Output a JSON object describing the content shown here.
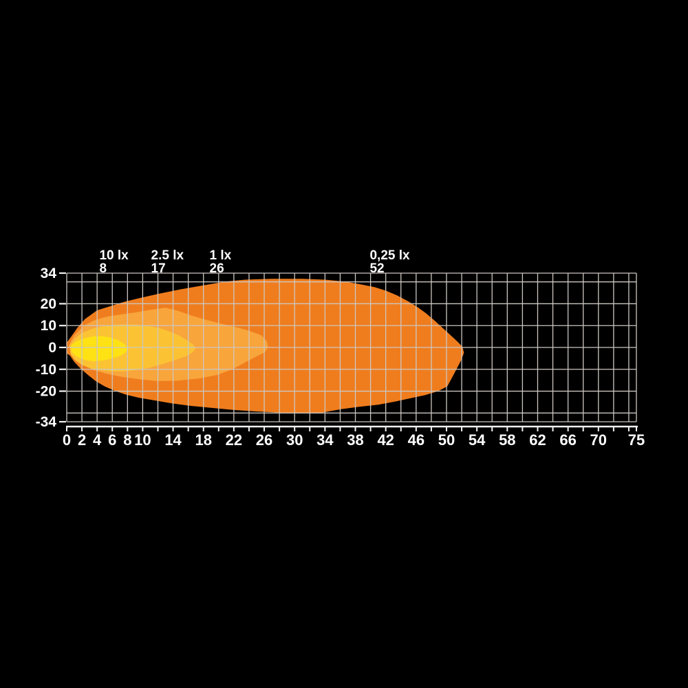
{
  "title": "beam-pattern-isolux-diagram",
  "colors": {
    "background": "#000000",
    "grid": "#CCC7C2",
    "axis": "#F2F2F2",
    "text": "#FFFFFF"
  },
  "chart_data": {
    "type": "area",
    "subtype": "isolux-contour-map",
    "x_axis": {
      "range": [
        0,
        75
      ],
      "grid_step": 2,
      "tick_labels": [
        "0",
        "2",
        "4",
        "6",
        "8",
        "10",
        "14",
        "18",
        "22",
        "26",
        "30",
        "34",
        "38",
        "42",
        "46",
        "50",
        "54",
        "58",
        "62",
        "66",
        "70",
        "75"
      ],
      "tick_values": [
        0,
        2,
        4,
        6,
        8,
        10,
        14,
        18,
        22,
        26,
        30,
        34,
        38,
        42,
        46,
        50,
        54,
        58,
        62,
        66,
        70,
        75
      ]
    },
    "y_axis": {
      "range": [
        -34,
        34
      ],
      "grid_values": [
        34,
        30,
        20,
        10,
        0,
        -10,
        -20,
        -30,
        -34
      ],
      "tick_labels": [
        "34",
        "20",
        "10",
        "0",
        "-10",
        "-20",
        "-34"
      ],
      "tick_values": [
        34,
        20,
        10,
        0,
        -10,
        -20,
        -34
      ]
    },
    "contours": [
      {
        "lux_label": "0,25 lx",
        "distance_label": "52",
        "distance_m": 52,
        "label_anchor_x": 39.9,
        "color": "#EF7D1E",
        "points": [
          [
            0,
            2.2
          ],
          [
            0.6,
            5
          ],
          [
            1.4,
            9
          ],
          [
            2.4,
            13
          ],
          [
            4,
            17
          ],
          [
            5.5,
            18.6
          ],
          [
            7.5,
            20.8
          ],
          [
            9.5,
            22.5
          ],
          [
            12,
            24.5
          ],
          [
            15,
            26.6
          ],
          [
            18,
            28.4
          ],
          [
            21,
            30.2
          ],
          [
            23.5,
            31
          ],
          [
            27,
            31.4
          ],
          [
            31,
            31.4
          ],
          [
            34,
            31
          ],
          [
            36.5,
            30.2
          ],
          [
            38.5,
            29
          ],
          [
            40.5,
            27.6
          ],
          [
            42,
            26
          ],
          [
            43.5,
            23.8
          ],
          [
            45,
            21
          ],
          [
            46.2,
            18.4
          ],
          [
            47.3,
            15.6
          ],
          [
            48.4,
            12.4
          ],
          [
            49.4,
            9.2
          ],
          [
            50.4,
            6
          ],
          [
            51.4,
            2.8
          ],
          [
            52.1,
            0.3
          ],
          [
            52.3,
            -2.5
          ],
          [
            51.9,
            -6
          ],
          [
            51.3,
            -10
          ],
          [
            50.7,
            -14
          ],
          [
            50.1,
            -17.8
          ],
          [
            48.9,
            -20
          ],
          [
            47.2,
            -21.8
          ],
          [
            45.3,
            -23.2
          ],
          [
            43.2,
            -24.8
          ],
          [
            41,
            -26.2
          ],
          [
            38.4,
            -27.2
          ],
          [
            36.2,
            -28.2
          ],
          [
            34.6,
            -29.2
          ],
          [
            33.2,
            -30.2
          ],
          [
            31,
            -30
          ],
          [
            28,
            -29.8
          ],
          [
            25,
            -29.3
          ],
          [
            22,
            -28.6
          ],
          [
            19,
            -27.6
          ],
          [
            16.2,
            -26.7
          ],
          [
            13.8,
            -25.6
          ],
          [
            11.5,
            -24.2
          ],
          [
            9.5,
            -23
          ],
          [
            7.8,
            -21.6
          ],
          [
            6.3,
            -19.8
          ],
          [
            5,
            -17.8
          ],
          [
            3.8,
            -15.4
          ],
          [
            2.8,
            -12.6
          ],
          [
            1.8,
            -9.6
          ],
          [
            1,
            -6.6
          ],
          [
            0.4,
            -3.6
          ],
          [
            0,
            -2.8
          ]
        ]
      },
      {
        "lux_label": "1 lx",
        "distance_label": "26",
        "distance_m": 26,
        "label_anchor_x": 18.8,
        "color": "#F8A53C",
        "points": [
          [
            0.3,
            1
          ],
          [
            1,
            5.5
          ],
          [
            2.2,
            9.8
          ],
          [
            3.6,
            12.4
          ],
          [
            5.2,
            14
          ],
          [
            7,
            15
          ],
          [
            9,
            16
          ],
          [
            11,
            17.2
          ],
          [
            13,
            18.2
          ],
          [
            14.6,
            16.8
          ],
          [
            16.4,
            14.6
          ],
          [
            18.4,
            12.6
          ],
          [
            20.4,
            10.8
          ],
          [
            22.4,
            9.2
          ],
          [
            24.2,
            7.4
          ],
          [
            25.6,
            5.6
          ],
          [
            26.3,
            3
          ],
          [
            26.5,
            0.3
          ],
          [
            26.1,
            -2.2
          ],
          [
            24.8,
            -4.4
          ],
          [
            23.4,
            -7
          ],
          [
            21.8,
            -10
          ],
          [
            19.8,
            -12.6
          ],
          [
            17.4,
            -14.2
          ],
          [
            14.6,
            -15.2
          ],
          [
            12,
            -15.4
          ],
          [
            9.6,
            -14.6
          ],
          [
            7.2,
            -13.4
          ],
          [
            5.2,
            -12
          ],
          [
            3.6,
            -10.4
          ],
          [
            2.2,
            -8.2
          ],
          [
            1.2,
            -5.6
          ],
          [
            0.5,
            -2.6
          ]
        ]
      },
      {
        "lux_label": "2.5 lx",
        "distance_label": "17",
        "distance_m": 17,
        "label_anchor_x": 11.1,
        "color": "#FBC334",
        "points": [
          [
            0.4,
            0.8
          ],
          [
            1,
            3.8
          ],
          [
            2,
            6.6
          ],
          [
            3.4,
            8.6
          ],
          [
            5,
            9.9
          ],
          [
            6.8,
            10.5
          ],
          [
            8.8,
            10.5
          ],
          [
            10.6,
            9.9
          ],
          [
            12.2,
            8.8
          ],
          [
            13.6,
            7.2
          ],
          [
            14.8,
            5.4
          ],
          [
            15.8,
            3.4
          ],
          [
            16.6,
            1.4
          ],
          [
            17,
            -0.3
          ],
          [
            16.6,
            -2.2
          ],
          [
            15.7,
            -4
          ],
          [
            14.4,
            -5.6
          ],
          [
            12.8,
            -7.4
          ],
          [
            11,
            -9.2
          ],
          [
            9.2,
            -10.4
          ],
          [
            7.4,
            -11
          ],
          [
            5.8,
            -11
          ],
          [
            4.4,
            -10.4
          ],
          [
            3,
            -9.4
          ],
          [
            2,
            -8
          ],
          [
            1.1,
            -5.8
          ],
          [
            0.5,
            -3
          ]
        ]
      },
      {
        "lux_label": "10 lx",
        "distance_label": "8",
        "distance_m": 8,
        "label_anchor_x": 4.3,
        "color": "#FFE214",
        "points": [
          [
            0.5,
            0.5
          ],
          [
            1,
            2.2
          ],
          [
            1.8,
            3.6
          ],
          [
            2.8,
            4.6
          ],
          [
            3.8,
            5.2
          ],
          [
            4.8,
            5.1
          ],
          [
            5.8,
            4.5
          ],
          [
            6.7,
            3.4
          ],
          [
            7.4,
            2
          ],
          [
            7.9,
            0.6
          ],
          [
            8.1,
            -0.8
          ],
          [
            7.7,
            -2.4
          ],
          [
            7,
            -3.9
          ],
          [
            6,
            -5
          ],
          [
            4.9,
            -5.9
          ],
          [
            3.8,
            -6.3
          ],
          [
            2.8,
            -6
          ],
          [
            1.9,
            -5.2
          ],
          [
            1.2,
            -3.9
          ],
          [
            0.7,
            -2.2
          ]
        ]
      }
    ],
    "legend_position": "top",
    "grid": true
  }
}
